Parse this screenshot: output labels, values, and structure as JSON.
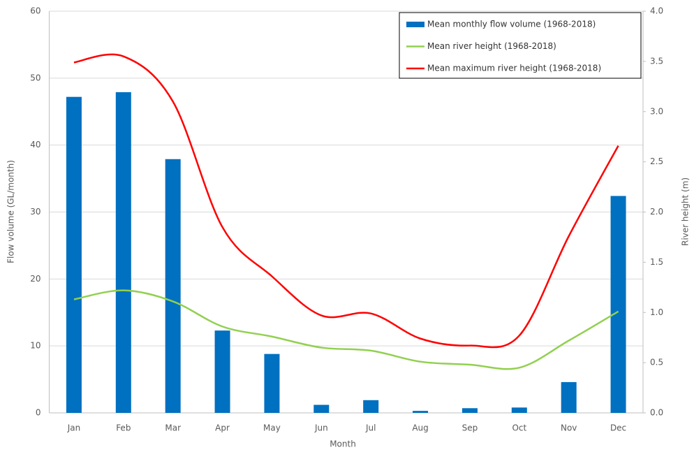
{
  "chart_data": {
    "type": "bar",
    "categories": [
      "Jan",
      "Feb",
      "Mar",
      "Apr",
      "May",
      "Jun",
      "Jul",
      "Aug",
      "Sep",
      "Oct",
      "Nov",
      "Dec"
    ],
    "series": [
      {
        "name": "Mean monthly flow volume (1968-2018)",
        "type": "bar",
        "color": "#0070c0",
        "values": [
          47.2,
          47.9,
          37.9,
          12.3,
          8.8,
          1.2,
          1.9,
          0.3,
          0.7,
          0.8,
          4.6,
          32.4
        ]
      },
      {
        "name": "Mean river height (1968-2018)",
        "type": "line",
        "axis": "y2",
        "color": "#92d050",
        "values": [
          1.13,
          1.22,
          1.11,
          0.86,
          0.76,
          0.65,
          0.62,
          0.51,
          0.48,
          0.45,
          0.72,
          1.01
        ]
      },
      {
        "name": "Mean maximum river height (1968-2018)",
        "type": "line",
        "axis": "y2",
        "color": "#ff0000",
        "values": [
          3.49,
          3.55,
          3.1,
          1.85,
          1.36,
          0.97,
          0.99,
          0.74,
          0.67,
          0.77,
          1.76,
          2.66
        ]
      }
    ],
    "xlabel": "Month",
    "ylabel": "Flow volume (GL/month)",
    "y2label": "River height (m)",
    "ylim": [
      0,
      60
    ],
    "yticks": [
      0,
      10,
      20,
      30,
      40,
      50,
      60
    ],
    "y2lim": [
      0,
      4
    ],
    "y2ticks": [
      {
        "value": 0,
        "label": "0.0"
      },
      0.5,
      {
        "value": 1,
        "label": "1.0"
      },
      1.5,
      {
        "value": 2,
        "label": "2.0"
      },
      2.5,
      {
        "value": 3,
        "label": "3.0"
      },
      3.5,
      {
        "value": 4,
        "label": "4.0"
      }
    ],
    "grid": true,
    "smooth": true,
    "legend": "top-right"
  }
}
